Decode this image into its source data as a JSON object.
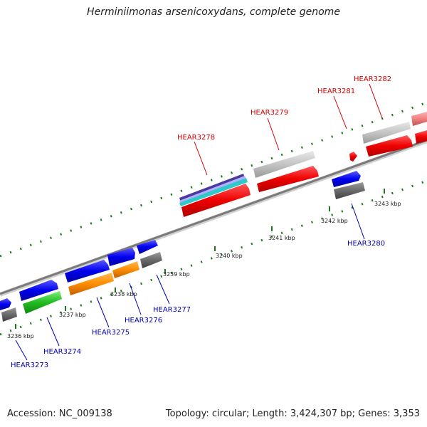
{
  "title": "Herminiimonas arsenicoxydans, complete genome",
  "accession": "Accession: NC_009138",
  "summary": "Topology: circular; Length: 3,424,307 bp; Genes: 3,353",
  "colors": {
    "label_upper": "#d40000",
    "label_lower": "#0000b0",
    "backbone": "#7a7a7a",
    "tick": "#1a7a1a"
  },
  "kbp_labels": [
    "3236 kbp",
    "3237 kbp",
    "3238 kbp",
    "3239 kbp",
    "3240 kbp",
    "3241 kbp",
    "3242 kbp",
    "3243 kbp"
  ],
  "gene_labels_upper": [
    "HEAR3278",
    "HEAR3279",
    "HEAR3281",
    "HEAR3282"
  ],
  "gene_labels_lower": [
    "HEAR3273",
    "HEAR3274",
    "HEAR3275",
    "HEAR3276",
    "HEAR3277",
    "HEAR3280"
  ]
}
